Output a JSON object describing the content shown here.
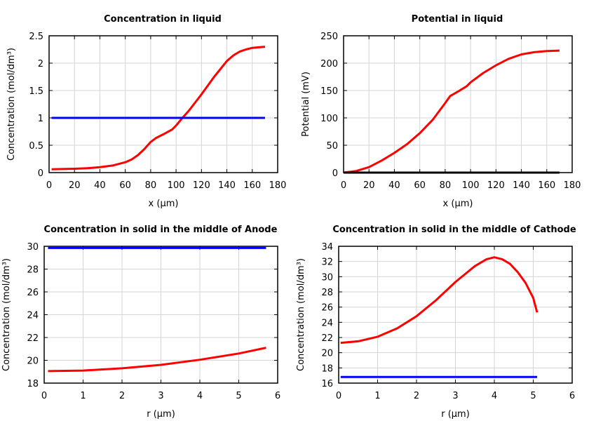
{
  "chart_data": [
    {
      "type": "line",
      "title": "Concentration in liquid",
      "xlabel": "x (µm)",
      "ylabel": "Concentration (mol/dm³)",
      "xlim": [
        0,
        180
      ],
      "ylim": [
        0,
        2.5
      ],
      "xticks": [
        0,
        20,
        40,
        60,
        80,
        100,
        120,
        140,
        160,
        180
      ],
      "yticks": [
        0,
        0.5,
        1,
        1.5,
        2,
        2.5
      ],
      "grid": true,
      "series": [
        {
          "color": "#ff0000",
          "x": [
            2,
            10,
            20,
            30,
            40,
            50,
            60,
            65,
            70,
            75,
            80,
            84,
            90,
            97,
            100,
            105,
            110,
            120,
            130,
            140,
            145,
            150,
            155,
            160,
            165,
            170
          ],
          "y": [
            0.06,
            0.065,
            0.07,
            0.08,
            0.1,
            0.13,
            0.19,
            0.24,
            0.32,
            0.43,
            0.56,
            0.63,
            0.7,
            0.79,
            0.86,
            1.0,
            1.13,
            1.43,
            1.75,
            2.04,
            2.14,
            2.21,
            2.25,
            2.28,
            2.29,
            2.3
          ]
        },
        {
          "color": "#0000ff",
          "x": [
            2,
            170
          ],
          "y": [
            1,
            1
          ]
        }
      ]
    },
    {
      "type": "line",
      "title": "Potential in liquid",
      "xlabel": "x (µm)",
      "ylabel": "Potential (mV)",
      "xlim": [
        0,
        180
      ],
      "ylim": [
        0,
        250
      ],
      "xticks": [
        0,
        20,
        40,
        60,
        80,
        100,
        120,
        140,
        160,
        180
      ],
      "yticks": [
        0,
        50,
        100,
        150,
        200,
        250
      ],
      "grid": true,
      "series": [
        {
          "color": "#ff0000",
          "x": [
            0,
            10,
            20,
            30,
            40,
            50,
            60,
            70,
            80,
            84,
            90,
            97,
            100,
            110,
            120,
            130,
            140,
            150,
            160,
            170
          ],
          "y": [
            0,
            3,
            10,
            22,
            36,
            52,
            72,
            96,
            127,
            140,
            148,
            158,
            165,
            182,
            196,
            208,
            216,
            220,
            222,
            223
          ]
        },
        {
          "color": "#000000",
          "x": [
            0,
            170
          ],
          "y": [
            0,
            0
          ]
        }
      ]
    },
    {
      "type": "line",
      "title": "Concentration in solid in the middle of Anode",
      "xlabel": "r (µm)",
      "ylabel": "Concentration (mol/dm³)",
      "xlim": [
        0,
        6
      ],
      "ylim": [
        18,
        30
      ],
      "xticks": [
        0,
        1,
        2,
        3,
        4,
        5,
        6
      ],
      "yticks": [
        18,
        20,
        22,
        24,
        26,
        28,
        30
      ],
      "grid": true,
      "series": [
        {
          "color": "#ff0000",
          "x": [
            0.1,
            1,
            2,
            3,
            4,
            5,
            5.7
          ],
          "y": [
            19.05,
            19.1,
            19.3,
            19.6,
            20.05,
            20.6,
            21.1
          ]
        },
        {
          "color": "#0000ff",
          "x": [
            0.1,
            5.7
          ],
          "y": [
            29.85,
            29.85
          ]
        }
      ]
    },
    {
      "type": "line",
      "title": "Concentration in solid in the middle of Cathode",
      "xlabel": "r (µm)",
      "ylabel": "Concentration (mol/dm³)",
      "xlim": [
        0,
        6
      ],
      "ylim": [
        16,
        34
      ],
      "xticks": [
        0,
        1,
        2,
        3,
        4,
        5,
        6
      ],
      "yticks": [
        16,
        18,
        20,
        22,
        24,
        26,
        28,
        30,
        32,
        34
      ],
      "grid": true,
      "series": [
        {
          "color": "#ff0000",
          "x": [
            0.05,
            0.5,
            1,
            1.5,
            2,
            2.5,
            3,
            3.5,
            3.8,
            4,
            4.2,
            4.4,
            4.6,
            4.8,
            5,
            5.1
          ],
          "y": [
            21.3,
            21.5,
            22.1,
            23.2,
            24.8,
            26.9,
            29.3,
            31.4,
            32.3,
            32.55,
            32.3,
            31.7,
            30.6,
            29.2,
            27.2,
            25.3
          ]
        },
        {
          "color": "#0000ff",
          "x": [
            0.05,
            5.1
          ],
          "y": [
            16.8,
            16.8
          ]
        }
      ]
    }
  ]
}
